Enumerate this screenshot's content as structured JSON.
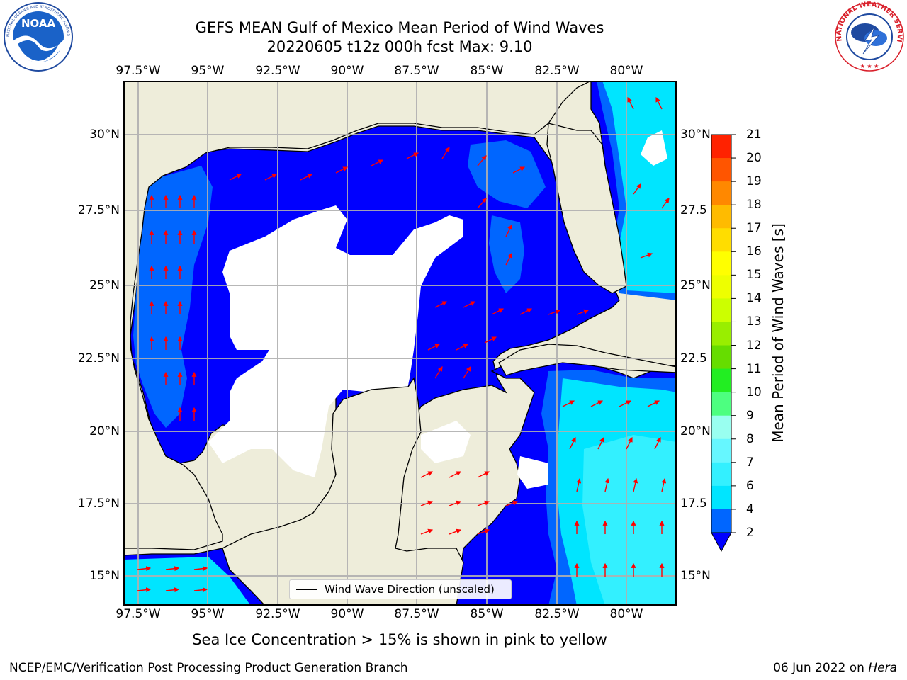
{
  "title": {
    "line1": "GEFS MEAN Gulf of Mexico Mean Period of Wind Waves",
    "line2": "20220605 t12z 000h fcst   Max: 9.10"
  },
  "logos": {
    "noaa": {
      "center_text": "NOAA",
      "ring_text": "NATIONAL OCEANIC AND ATMOSPHERIC ADMINISTRATION · U.S. DEPARTMENT OF COMMERCE"
    },
    "nws": {
      "ring_text": "NATIONAL WEATHER SERVICE"
    }
  },
  "axes": {
    "lon_ticks_top": [
      "97.5°W",
      "95°W",
      "92.5°W",
      "90°W",
      "87.5°W",
      "85°W",
      "82.5°W",
      "80°W"
    ],
    "lon_ticks_bottom": [
      "97.5°W",
      "95°W",
      "92.5°W",
      "90°W",
      "87.5°W",
      "85°W",
      "82.5°W",
      "80°W"
    ],
    "lat_ticks_left": [
      "30°N",
      "27.5°N",
      "25°N",
      "22.5°N",
      "20°N",
      "17.5°N",
      "15°N"
    ],
    "lat_ticks_right": [
      "30°N",
      "27.5",
      "25°N",
      "22.5",
      "20°N",
      "17.5",
      "15°N"
    ],
    "lon_values": [
      -97.5,
      -95,
      -92.5,
      -90,
      -87.5,
      -85,
      -82.5,
      -80
    ],
    "lat_values": [
      30,
      27.5,
      25,
      22.5,
      20,
      17.5,
      15
    ],
    "lon_range": [
      -98,
      -78.2
    ],
    "lat_range": [
      14,
      31.8
    ],
    "grid": true
  },
  "colorbar": {
    "label": "Mean Period of Wind Waves [s]",
    "levels": [
      2,
      4,
      6,
      7,
      8,
      9,
      10,
      11,
      12,
      13,
      14,
      15,
      16,
      17,
      18,
      19,
      20,
      21
    ],
    "tick_labels": [
      "2",
      "4",
      "6",
      "7",
      "8",
      "9",
      "10",
      "11",
      "12",
      "13",
      "14",
      "15",
      "16",
      "17",
      "18",
      "19",
      "20",
      "21"
    ],
    "colors": [
      "#0066ff",
      "#00e5ff",
      "#33f0ff",
      "#66f7ff",
      "#99fff0",
      "#4dff80",
      "#22ee22",
      "#66dd00",
      "#99ee00",
      "#ccff00",
      "#eeff00",
      "#ffff00",
      "#ffdd00",
      "#ffbb00",
      "#ff8800",
      "#ff5500",
      "#ff2200"
    ],
    "under_color": "#0000ff"
  },
  "map_colors": {
    "land": "#eeedda",
    "coast": "#000000",
    "no_data": "#ffffff",
    "arrow": "#ff0000",
    "grid": "#b0b0b0"
  },
  "legend": {
    "label": "Wind Wave Direction (unscaled)"
  },
  "note": "Sea Ice Concentration > 15% is shown in pink to yellow",
  "footer": {
    "left": "NCEP/EMC/Verification Post Processing Product Generation Branch",
    "right_prefix": "06 Jun 2022 on ",
    "right_host": "Hera"
  }
}
